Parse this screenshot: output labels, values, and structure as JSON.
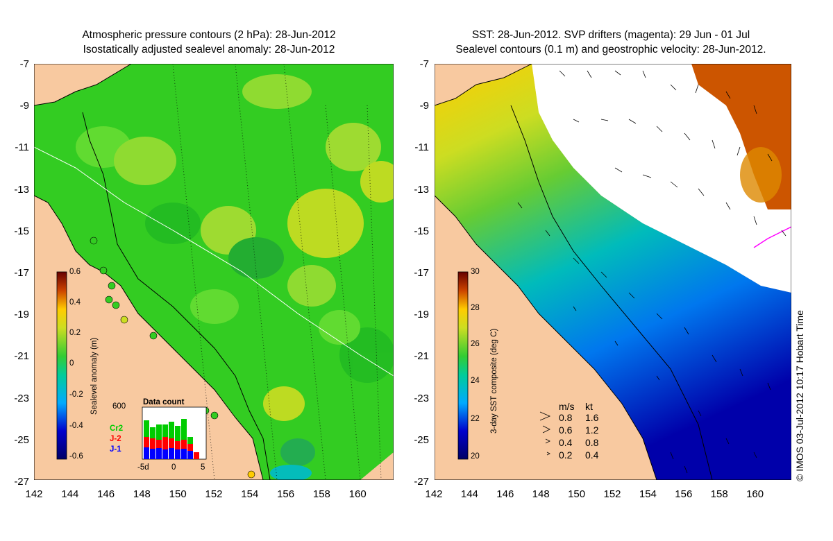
{
  "left_panel": {
    "title_line1": "Atmospheric pressure contours (2 hPa): 28-Jun-2012",
    "title_line2": "Isostatically adjusted sealevel anomaly: 28-Jun-2012",
    "colorbar_label": "Sealevel anomaly (m)",
    "colorbar_ticks": [
      "0.6",
      "0.4",
      "0.2",
      "0",
      "-0.2",
      "-0.4",
      "-0.6"
    ],
    "inset": {
      "title": "Data count",
      "ymax_label": "600",
      "x_ticks": [
        "-5d",
        "0",
        "5"
      ],
      "series": [
        {
          "name": "Cr2",
          "color": "#00cc00"
        },
        {
          "name": "J-2",
          "color": "#ff0000"
        },
        {
          "name": "J-1",
          "color": "#0000ff"
        }
      ]
    }
  },
  "right_panel": {
    "title_line1": "SST: 28-Jun-2012. SVP drifters (magenta): 29 Jun - 01 Jul",
    "title_line2": "Sealevel contours (0.1 m) and geostrophic velocity: 28-Jun-2012.",
    "colorbar_label": "3-day SST composite (deg C)",
    "colorbar_ticks": [
      "30",
      "28",
      "26",
      "24",
      "22",
      "20"
    ],
    "speed_legend": {
      "header_ms": "m/s",
      "header_kt": "kt",
      "rows": [
        {
          "ms": "0.8",
          "kt": "1.6"
        },
        {
          "ms": "0.6",
          "kt": "1.2"
        },
        {
          "ms": "0.4",
          "kt": "0.8"
        },
        {
          "ms": "0.2",
          "kt": "0.4"
        }
      ]
    },
    "credit": "© IMOS 03-Jul-2012 10:17 Hobart Time"
  },
  "axes": {
    "y_ticks": [
      "-7",
      "-9",
      "-11",
      "-13",
      "-15",
      "-17",
      "-19",
      "-21",
      "-23",
      "-25",
      "-27"
    ],
    "x_ticks": [
      "142",
      "144",
      "146",
      "148",
      "150",
      "152",
      "154",
      "156",
      "158",
      "160"
    ]
  },
  "colors": {
    "land": "#f8c9a0",
    "anomaly_scale": [
      "#000066",
      "#0000cc",
      "#0080ff",
      "#00cccc",
      "#00cc66",
      "#33cc33",
      "#66dd33",
      "#ccdd22",
      "#ffcc00",
      "#ff8800",
      "#cc3300",
      "#660000"
    ],
    "sst_scale": [
      "#000066",
      "#0000cc",
      "#0066ff",
      "#00aaff",
      "#00ccbb",
      "#00cc66",
      "#33cc33",
      "#99dd22",
      "#ffdd00",
      "#ff9900",
      "#cc3300",
      "#660000"
    ]
  }
}
